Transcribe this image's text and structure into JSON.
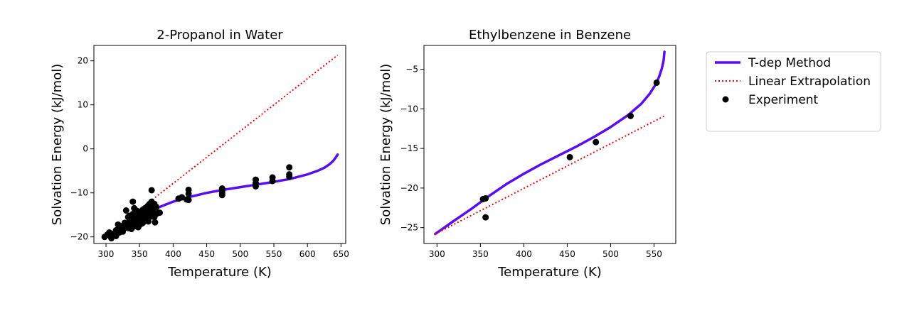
{
  "legend": {
    "entries": [
      {
        "label": "T-dep Method",
        "kind": "line",
        "color": "#5a0cf0",
        "style": "solid"
      },
      {
        "label": "Linear Extrapolation",
        "kind": "line",
        "color": "#ff0000",
        "style": "dotted"
      },
      {
        "label": "Experiment",
        "kind": "marker",
        "color": "#000000"
      }
    ],
    "placement": "right-of-plots"
  },
  "chart_data": [
    {
      "type": "scatter",
      "title": "2-Propanol in Water",
      "xlabel": "Temperature (K)",
      "ylabel": "Solvation Energy (kJ/mol)",
      "xlim": [
        282,
        657
      ],
      "ylim": [
        -21.5,
        23.5
      ],
      "xticks": [
        300,
        350,
        400,
        450,
        500,
        550,
        600,
        650
      ],
      "yticks": [
        -20,
        -10,
        0,
        10,
        20
      ],
      "grid": false,
      "series": [
        {
          "name": "T-dep Method",
          "type": "line",
          "color": "#5a0cf0",
          "style": "solid",
          "x": [
            298,
            320,
            340,
            360,
            380,
            400,
            425,
            450,
            475,
            500,
            525,
            550,
            575,
            600,
            615,
            625,
            632,
            638,
            642,
            645
          ],
          "y": [
            -20.0,
            -18.0,
            -16.2,
            -14.6,
            -13.2,
            -12.0,
            -10.9,
            -10.0,
            -9.3,
            -8.7,
            -8.1,
            -7.5,
            -6.8,
            -5.8,
            -5.0,
            -4.3,
            -3.6,
            -2.8,
            -2.0,
            -1.3
          ]
        },
        {
          "name": "Linear Extrapolation",
          "type": "line",
          "color": "#ff0000",
          "style": "dotted",
          "x": [
            298,
            645
          ],
          "y": [
            -20.0,
            21.3
          ]
        },
        {
          "name": "Experiment",
          "type": "scatter",
          "color": "#000000",
          "x": [
            298,
            302,
            305,
            308,
            310,
            312,
            315,
            315,
            318,
            318,
            320,
            320,
            322,
            325,
            325,
            328,
            328,
            330,
            330,
            333,
            333,
            335,
            335,
            335,
            338,
            338,
            340,
            340,
            340,
            342,
            342,
            343,
            345,
            345,
            345,
            348,
            348,
            348,
            350,
            350,
            350,
            352,
            352,
            353,
            355,
            355,
            355,
            358,
            358,
            358,
            360,
            360,
            362,
            362,
            363,
            365,
            365,
            365,
            368,
            368,
            368,
            368,
            370,
            370,
            372,
            372,
            373,
            375,
            375,
            378,
            380,
            408,
            413,
            420,
            423,
            423,
            423,
            473,
            473,
            473,
            473,
            523,
            523,
            523,
            548,
            548,
            573,
            573,
            573
          ],
          "y": [
            -20.0,
            -19.5,
            -19.0,
            -20.3,
            -19.8,
            -19.3,
            -18.5,
            -19.8,
            -17.2,
            -18.9,
            -17.8,
            -19.0,
            -18.0,
            -17.5,
            -18.8,
            -16.8,
            -17.9,
            -14.0,
            -17.0,
            -15.5,
            -18.0,
            -15.2,
            -16.5,
            -17.5,
            -16.0,
            -18.2,
            -12.0,
            -14.8,
            -17.0,
            -13.5,
            -16.2,
            -17.6,
            -14.0,
            -15.5,
            -17.2,
            -14.2,
            -16.0,
            -17.8,
            -15.0,
            -16.5,
            -17.3,
            -14.5,
            -16.0,
            -17.0,
            -13.8,
            -15.5,
            -16.8,
            -13.5,
            -15.0,
            -16.2,
            -14.0,
            -15.8,
            -13.0,
            -14.8,
            -16.5,
            -12.5,
            -14.0,
            -15.5,
            -9.4,
            -12.0,
            -13.5,
            -15.0,
            -12.8,
            -14.2,
            -12.5,
            -15.5,
            -16.7,
            -13.2,
            -14.8,
            -14.5,
            -14.5,
            -11.3,
            -11.0,
            -11.5,
            -9.3,
            -10.2,
            -11.6,
            -9.0,
            -9.6,
            -10.1,
            -10.5,
            -7.0,
            -7.8,
            -8.5,
            -6.5,
            -7.3,
            -4.2,
            -5.8,
            -6.3
          ]
        }
      ]
    },
    {
      "type": "scatter",
      "title": "Ethylbenzene in Benzene",
      "xlabel": "Temperature (K)",
      "ylabel": "Solvation Energy (kJ/mol)",
      "xlim": [
        285,
        575
      ],
      "ylim": [
        -27,
        -2
      ],
      "xticks": [
        300,
        350,
        400,
        450,
        500,
        550
      ],
      "yticks": [
        -25,
        -20,
        -15,
        -10,
        -5
      ],
      "grid": false,
      "series": [
        {
          "name": "T-dep Method",
          "type": "line",
          "color": "#5a0cf0",
          "style": "solid",
          "x": [
            298,
            320,
            340,
            360,
            380,
            400,
            420,
            440,
            460,
            480,
            500,
            520,
            535,
            545,
            552,
            556,
            559,
            561,
            562
          ],
          "y": [
            -25.8,
            -24.1,
            -22.6,
            -21.0,
            -19.5,
            -18.2,
            -17.0,
            -15.9,
            -14.8,
            -13.6,
            -12.3,
            -10.8,
            -9.4,
            -8.1,
            -6.9,
            -5.9,
            -4.9,
            -3.9,
            -2.8
          ]
        },
        {
          "name": "Linear Extrapolation",
          "type": "line",
          "color": "#ff0000",
          "style": "dotted",
          "x": [
            298,
            562
          ],
          "y": [
            -25.8,
            -10.9
          ]
        },
        {
          "name": "Experiment",
          "type": "scatter",
          "color": "#000000",
          "x": [
            353,
            356,
            356,
            453,
            483,
            523,
            553
          ],
          "y": [
            -21.4,
            -21.3,
            -23.7,
            -16.1,
            -14.2,
            -10.9,
            -6.7
          ]
        }
      ]
    }
  ]
}
